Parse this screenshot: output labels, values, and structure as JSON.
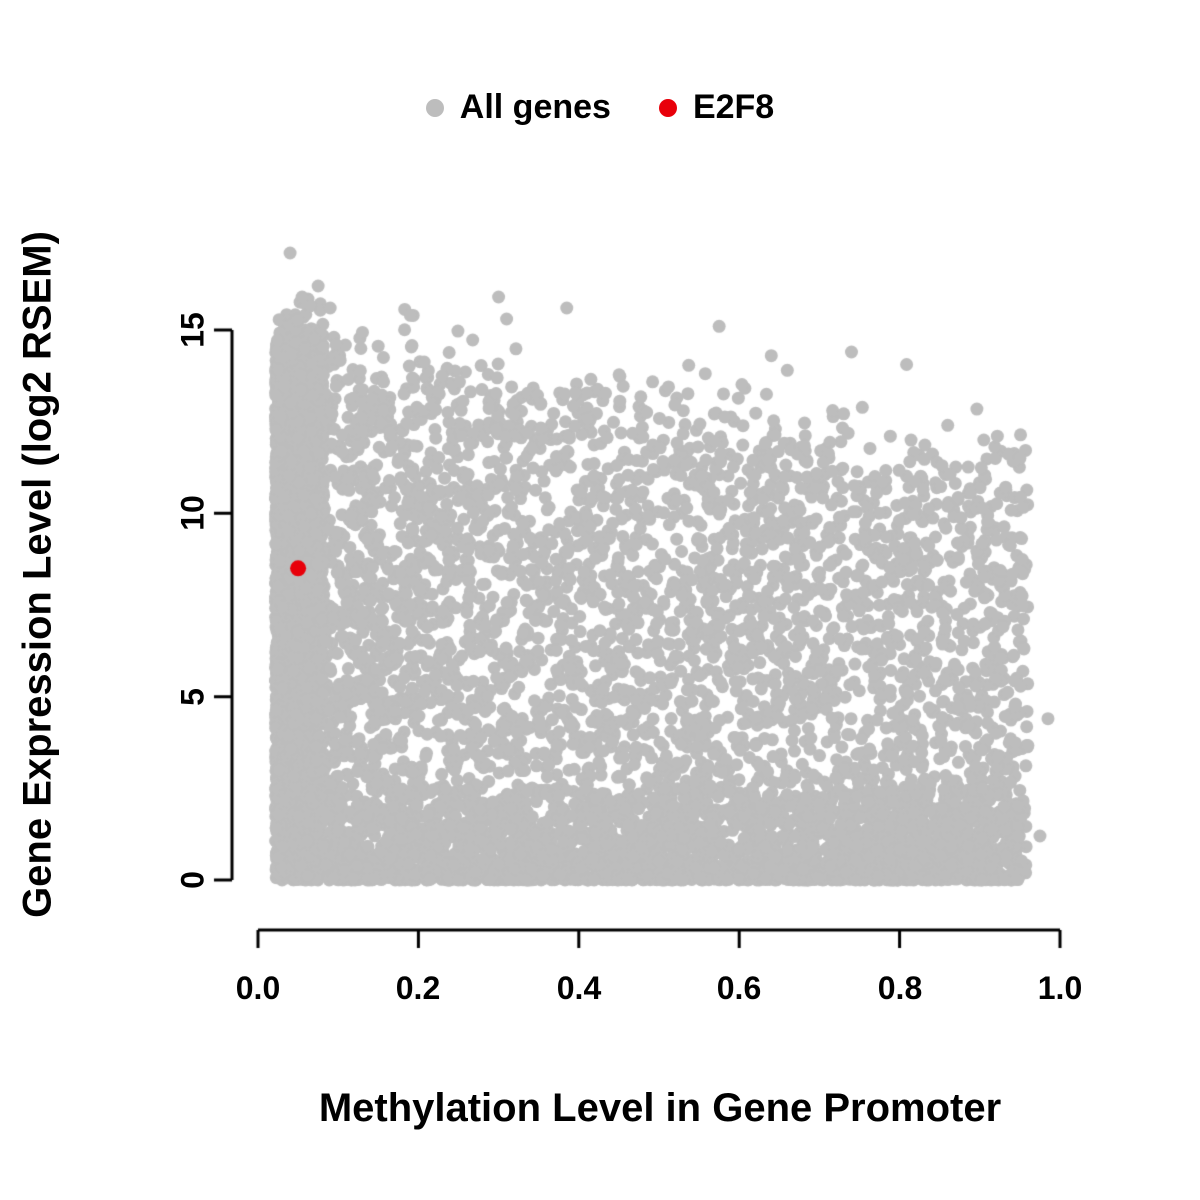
{
  "chart_data": {
    "type": "scatter",
    "title": "",
    "xlabel": "Methylation Level in Gene Promoter",
    "ylabel": "Gene Expression Level (log2 RSEM)",
    "xlim": [
      0,
      1.0
    ],
    "ylim": [
      0,
      17.5
    ],
    "grid": false,
    "legend_position": "top-center",
    "x_ticks": [
      "0.0",
      "0.2",
      "0.4",
      "0.6",
      "0.8",
      "1.0"
    ],
    "x_tick_values": [
      0,
      0.2,
      0.4,
      0.6,
      0.8,
      1.0
    ],
    "y_ticks": [
      "0",
      "5",
      "10",
      "15"
    ],
    "y_tick_values": [
      0,
      5,
      10,
      15
    ],
    "axis_color": "#000000",
    "legend": [
      {
        "label": "All genes",
        "color": "#bdbdbd"
      },
      {
        "label": "E2F8",
        "color": "#e8000a"
      }
    ],
    "series": [
      {
        "name": "All genes",
        "color": "#bdbdbd",
        "marker": "filled-circle",
        "marker_radius_px": 6.5,
        "generator": {
          "seed": 42,
          "n": 9000,
          "x_range": [
            0.015,
            0.965
          ],
          "y_range": [
            0,
            17.3
          ],
          "left_strip": {
            "weight": 0.3,
            "x_min": 0.022,
            "x_spread": 0.06,
            "cap": 14.6
          },
          "main_cloud": {
            "weight": 0.48,
            "x_min": 0.04,
            "x_spread": 0.92,
            "cap_at_0": 14.6,
            "cap_slope": -3.8
          },
          "bottom_band": {
            "weight": 0.22,
            "x_min": 0.03,
            "x_spread": 0.92,
            "y_max": 2.5
          }
        },
        "extra_points": [
          [
            0.04,
            17.1
          ],
          [
            0.075,
            16.2
          ],
          [
            0.055,
            15.9
          ],
          [
            0.09,
            15.6
          ],
          [
            0.19,
            15.4
          ],
          [
            0.3,
            15.9
          ],
          [
            0.31,
            15.3
          ],
          [
            0.385,
            15.6
          ],
          [
            0.575,
            15.1
          ],
          [
            0.64,
            14.3
          ],
          [
            0.74,
            14.4
          ],
          [
            0.66,
            13.9
          ],
          [
            0.86,
            12.4
          ],
          [
            0.905,
            12.0
          ],
          [
            0.95,
            11.5
          ],
          [
            0.955,
            6.3
          ],
          [
            0.985,
            4.4
          ],
          [
            0.93,
            2.0
          ],
          [
            0.975,
            1.2
          ]
        ]
      },
      {
        "name": "E2F8",
        "color": "#e8000a",
        "marker": "filled-circle",
        "marker_radius_px": 8,
        "points": [
          [
            0.05,
            8.5
          ]
        ]
      }
    ]
  }
}
